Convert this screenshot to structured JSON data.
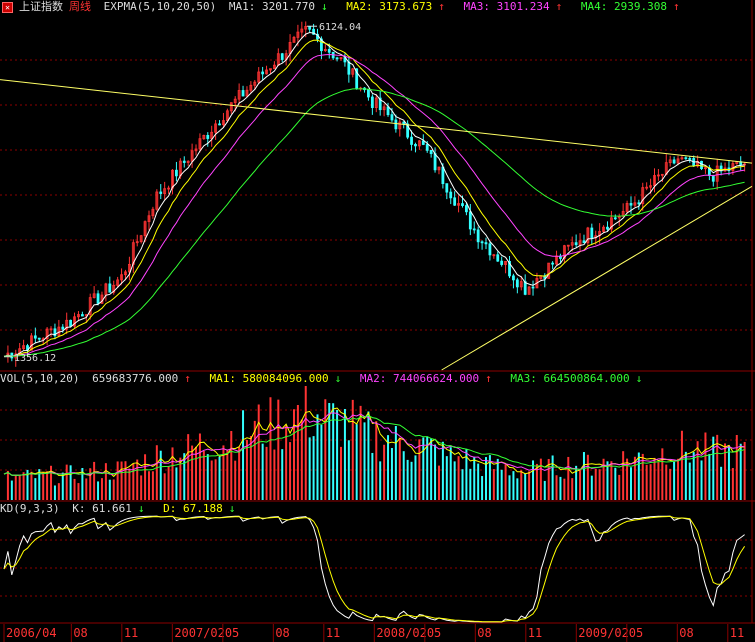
{
  "header_main": {
    "index_name": "上证指数",
    "period": "周线",
    "indicator": "EXPMA(5,10,20,50)",
    "ma1": "MA1: 3201.770",
    "ma1_arrow": "↓",
    "ma2": "MA2: 3173.673",
    "ma2_arrow": "↑",
    "ma3": "MA3: 3101.234",
    "ma3_arrow": "↑",
    "ma4": "MA4: 2939.308",
    "ma4_arrow": "↑"
  },
  "header_vol": {
    "indicator": "VOL(5,10,20)",
    "value": "659683776.000",
    "value_arrow": "↑",
    "ma1": "MA1: 580084096.000",
    "ma1_arrow": "↓",
    "ma2": "MA2: 744066624.000",
    "ma2_arrow": "↑",
    "ma3": "MA3: 664500864.000",
    "ma3_arrow": "↓"
  },
  "header_kd": {
    "indicator": "KD(9,3,3)",
    "k": "K: 61.661",
    "k_arrow": "↓",
    "d": "D: 67.188",
    "d_arrow": "↓"
  },
  "colors": {
    "up": "#ff3333",
    "down": "#33ffff",
    "ma1": "#ffffff",
    "ma2": "#ffff00",
    "ma3": "#ff44ff",
    "ma4": "#33ff33",
    "grid": "#8b0000",
    "axis_text": "#ff3333"
  },
  "chart_data": [
    {
      "type": "candlestick",
      "title": "上证指数 周线",
      "x_range": [
        "2006/04",
        "2009/12"
      ],
      "annotations": [
        {
          "label": "6124.04",
          "value": 6124.04,
          "kind": "high"
        },
        {
          "label": "1356.12",
          "value": 1356.12,
          "kind": "low"
        }
      ],
      "trendlines": [
        "downtrend resistance from 2006 to 2009",
        "uptrend support from late 2008 low"
      ],
      "close_approx": [
        {
          "date": "2006-04",
          "value": 1360
        },
        {
          "date": "2006-08",
          "value": 1600
        },
        {
          "date": "2006-11",
          "value": 1950
        },
        {
          "date": "2007-01",
          "value": 2800
        },
        {
          "date": "2007-05",
          "value": 4100
        },
        {
          "date": "2007-08",
          "value": 5200
        },
        {
          "date": "2007-10",
          "value": 6000
        },
        {
          "date": "2007-12",
          "value": 5250
        },
        {
          "date": "2008-02",
          "value": 4300
        },
        {
          "date": "2008-05",
          "value": 3500
        },
        {
          "date": "2008-08",
          "value": 2400
        },
        {
          "date": "2008-11",
          "value": 1850
        },
        {
          "date": "2009-02",
          "value": 2300
        },
        {
          "date": "2009-05",
          "value": 2650
        },
        {
          "date": "2009-08",
          "value": 3350
        },
        {
          "date": "2009-10",
          "value": 3100
        },
        {
          "date": "2009-12",
          "value": 3280
        }
      ],
      "series": [
        "MA1",
        "MA2",
        "MA3",
        "MA4"
      ]
    },
    {
      "type": "bar",
      "title": "VOL(5,10,20)",
      "series": [
        "VOL",
        "MA1",
        "MA2",
        "MA3"
      ],
      "latest": {
        "VOL": 659683776.0,
        "MA1": 580084096.0,
        "MA2": 744066624.0,
        "MA3": 664500864.0
      }
    },
    {
      "type": "line",
      "title": "KD(9,3,3)",
      "series": [
        "K",
        "D"
      ],
      "latest": {
        "K": 61.661,
        "D": 67.188
      }
    }
  ],
  "x_axis_labels": [
    {
      "label": "2006/04",
      "date": "2006-04"
    },
    {
      "label": "08",
      "date": "2006-08"
    },
    {
      "label": "11",
      "date": "2006-11"
    },
    {
      "label": "2007/02",
      "date": "2007-02"
    },
    {
      "label": "05",
      "date": "2007-05"
    },
    {
      "label": "08",
      "date": "2007-08"
    },
    {
      "label": "11",
      "date": "2007-11"
    },
    {
      "label": "2008/02",
      "date": "2008-02"
    },
    {
      "label": "05",
      "date": "2008-05"
    },
    {
      "label": "08",
      "date": "2008-08"
    },
    {
      "label": "11",
      "date": "2008-11"
    },
    {
      "label": "2009/02",
      "date": "2009-02"
    },
    {
      "label": "05",
      "date": "2009-05"
    },
    {
      "label": "08",
      "date": "2009-08"
    },
    {
      "label": "11",
      "date": "2009-11"
    }
  ]
}
